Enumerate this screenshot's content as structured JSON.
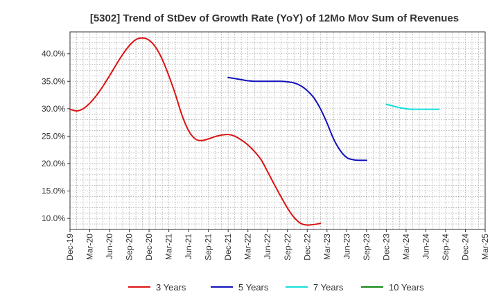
{
  "chart_data": {
    "type": "line",
    "title": "[5302]  Trend of StDev of Growth Rate (YoY) of 12Mo Mov Sum of Revenues",
    "xlabel": "",
    "ylabel": "",
    "ylim": [
      8.0,
      44.0
    ],
    "y_ticks": [
      10,
      15,
      20,
      25,
      30,
      35,
      40
    ],
    "y_tick_labels": [
      "10.0%",
      "15.0%",
      "20.0%",
      "25.0%",
      "30.0%",
      "35.0%",
      "40.0%"
    ],
    "x_tick_labels": [
      "Dec-19",
      "Mar-20",
      "Jun-20",
      "Sep-20",
      "Dec-20",
      "Mar-21",
      "Jun-21",
      "Sep-21",
      "Dec-21",
      "Mar-22",
      "Jun-22",
      "Sep-22",
      "Dec-22",
      "Mar-23",
      "Jun-23",
      "Sep-23",
      "Dec-23",
      "Mar-24",
      "Jun-24",
      "Sep-24",
      "Dec-24",
      "Mar-25"
    ],
    "grid": true,
    "legend_position": "bottom",
    "series": [
      {
        "name": "3 Years",
        "color": "#dd1111",
        "start_index": 0,
        "values": [
          29.9,
          29.6,
          30.0,
          31.0,
          32.4,
          34.1,
          36.0,
          38.0,
          39.9,
          41.5,
          42.6,
          42.9,
          42.5,
          41.2,
          39.0,
          36.0,
          32.6,
          28.8,
          26.0,
          24.5,
          24.2,
          24.5,
          24.9,
          25.2,
          25.3,
          25.0,
          24.3,
          23.4,
          22.2,
          20.7,
          18.5,
          16.2,
          14.0,
          11.9,
          10.2,
          9.1,
          8.8,
          8.9,
          9.1
        ]
      },
      {
        "name": "5 Years",
        "color": "#1111bb",
        "start_index": 24,
        "values": [
          35.7,
          35.5,
          35.3,
          35.1,
          35.0,
          35.0,
          35.0,
          35.0,
          35.0,
          34.9,
          34.7,
          34.2,
          33.3,
          32.0,
          30.0,
          27.4,
          24.5,
          22.4,
          21.1,
          20.7,
          20.6,
          20.6
        ]
      },
      {
        "name": "7 Years",
        "color": "#11dddd",
        "start_index": 48,
        "values": [
          30.8,
          30.5,
          30.2,
          30.0,
          29.9,
          29.9,
          29.9,
          29.9,
          29.9
        ]
      },
      {
        "name": "10 Years",
        "color": "#118811",
        "start_index": 0,
        "values": []
      }
    ]
  }
}
